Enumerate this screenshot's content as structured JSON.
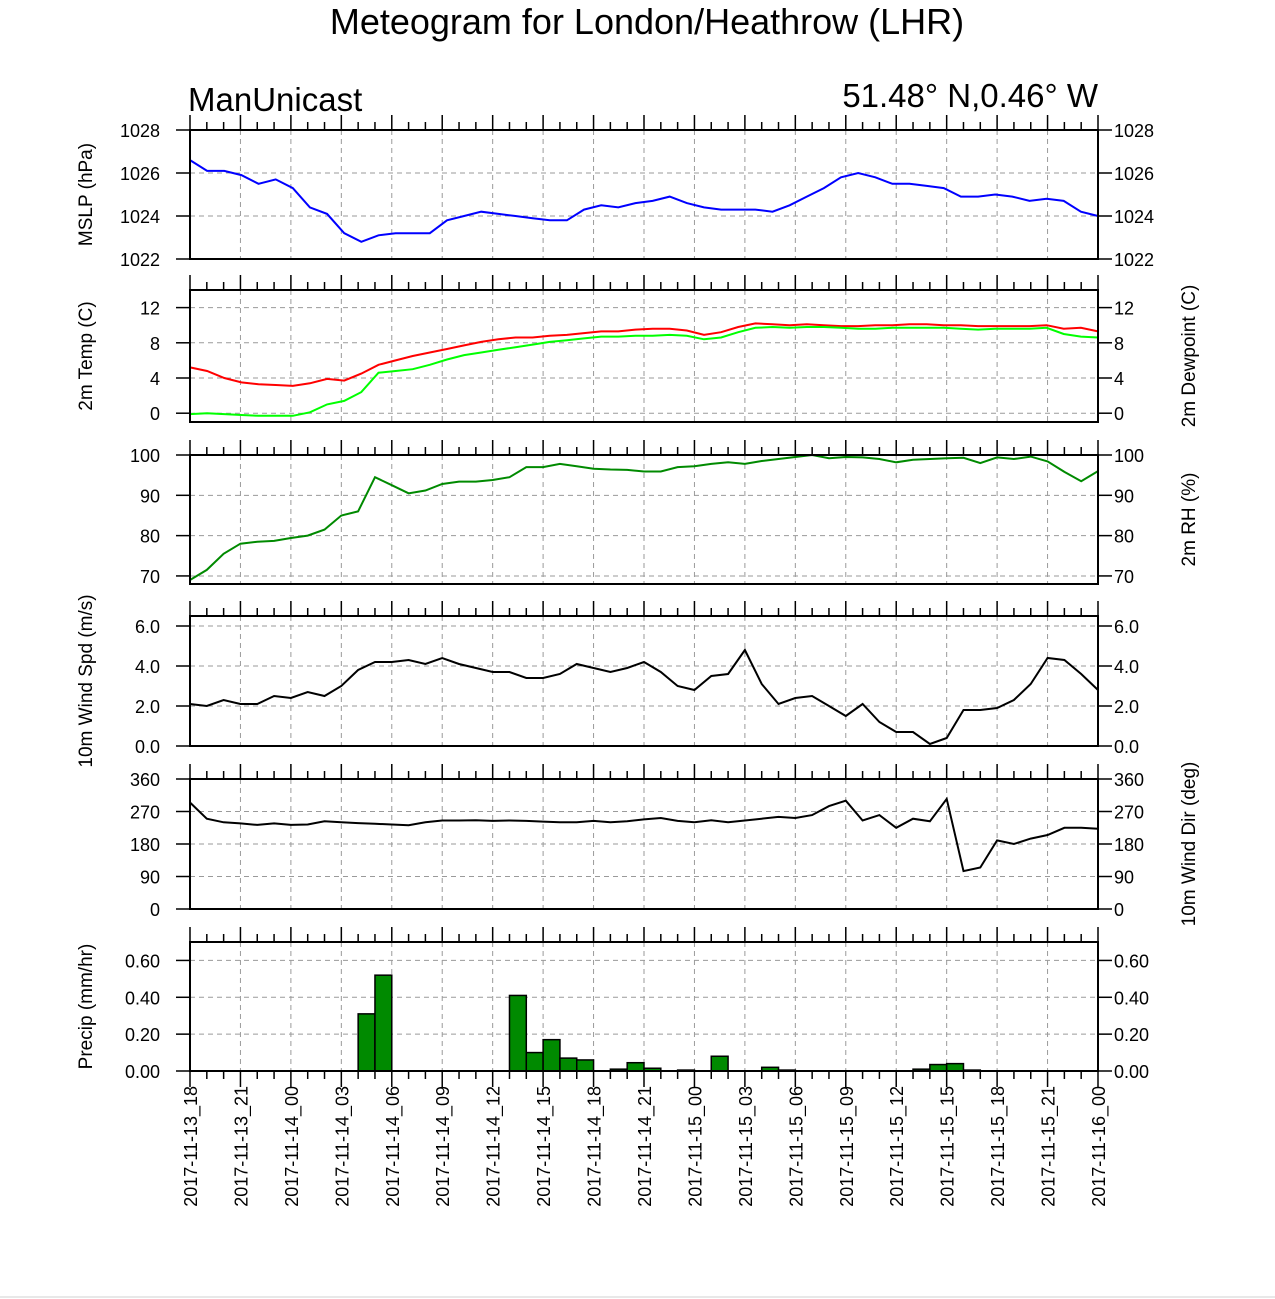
{
  "page": {
    "title": "Meteogram for London/Heathrow (LHR)",
    "model": "ManUnicast",
    "location": "51.48° N,0.46° W"
  },
  "time_axis": {
    "labels": [
      "2017-11-13_18",
      "2017-11-13_21",
      "2017-11-14_00",
      "2017-11-14_03",
      "2017-11-14_06",
      "2017-11-14_09",
      "2017-11-14_12",
      "2017-11-14_15",
      "2017-11-14_18",
      "2017-11-14_21",
      "2017-11-15_00",
      "2017-11-15_03",
      "2017-11-15_06",
      "2017-11-15_09",
      "2017-11-15_12",
      "2017-11-15_15",
      "2017-11-15_18",
      "2017-11-15_21",
      "2017-11-16_00"
    ],
    "start_hour": 0,
    "end_hour": 54
  },
  "chart_data": [
    {
      "type": "line",
      "id": "mslp",
      "ylabel_left": "MSLP (hPa)",
      "ylabel_right": "",
      "ylim": [
        1022,
        1028
      ],
      "yticks": [
        1022,
        1024,
        1026,
        1028
      ],
      "right_ticks": true,
      "grid": true,
      "series": [
        {
          "color": "#0000ff",
          "values": [
            1026.6,
            1026.1,
            1026.1,
            1025.9,
            1025.5,
            1025.7,
            1025.3,
            1024.4,
            1024.1,
            1023.2,
            1022.8,
            1023.1,
            1023.2,
            1023.2,
            1023.2,
            1023.8,
            1024.0,
            1024.2,
            1024.1,
            1024.0,
            1023.9,
            1023.8,
            1023.8,
            1024.3,
            1024.5,
            1024.4,
            1024.6,
            1024.7,
            1024.9,
            1024.6,
            1024.4,
            1024.3,
            1024.3,
            1024.3,
            1024.2,
            1024.5,
            1024.9,
            1025.3,
            1025.8,
            1026.0,
            1025.8,
            1025.5,
            1025.5,
            1025.4,
            1025.3,
            1024.9,
            1024.9,
            1025.0,
            1024.9,
            1024.7,
            1024.8,
            1024.7,
            1024.2,
            1024.0
          ]
        }
      ]
    },
    {
      "type": "line",
      "id": "temp",
      "ylabel_left": "2m Temp (C)",
      "ylabel_right": "2m Dewpoint (C)",
      "ylim": [
        -1,
        14
      ],
      "yticks": [
        0,
        4,
        8,
        12
      ],
      "right_ticks": true,
      "grid": true,
      "series": [
        {
          "color": "#ff0000",
          "values": [
            5.2,
            4.8,
            4.0,
            3.5,
            3.3,
            3.2,
            3.1,
            3.4,
            3.9,
            3.7,
            4.5,
            5.5,
            6.0,
            6.5,
            6.9,
            7.3,
            7.7,
            8.1,
            8.4,
            8.6,
            8.6,
            8.8,
            8.9,
            9.1,
            9.3,
            9.3,
            9.5,
            9.6,
            9.6,
            9.4,
            8.9,
            9.2,
            9.8,
            10.2,
            10.1,
            10.0,
            10.1,
            10.0,
            9.9,
            9.9,
            10.0,
            10.0,
            10.1,
            10.1,
            10.0,
            10.0,
            9.9,
            9.9,
            9.9,
            9.9,
            10.0,
            9.6,
            9.7,
            9.3
          ]
        },
        {
          "color": "#00ff00",
          "values": [
            -0.1,
            0.0,
            -0.1,
            -0.2,
            -0.3,
            -0.3,
            -0.3,
            0.1,
            1.0,
            1.4,
            2.4,
            4.6,
            4.8,
            5.0,
            5.5,
            6.1,
            6.6,
            6.9,
            7.2,
            7.5,
            7.8,
            8.1,
            8.3,
            8.5,
            8.7,
            8.7,
            8.8,
            8.8,
            8.9,
            8.8,
            8.4,
            8.6,
            9.2,
            9.7,
            9.8,
            9.7,
            9.8,
            9.8,
            9.7,
            9.6,
            9.6,
            9.7,
            9.7,
            9.7,
            9.7,
            9.6,
            9.5,
            9.6,
            9.6,
            9.6,
            9.7,
            9.0,
            8.7,
            8.6
          ]
        }
      ]
    },
    {
      "type": "line",
      "id": "rh",
      "ylabel_left": "",
      "ylabel_right": "2m RH (%)",
      "ylim": [
        68,
        100
      ],
      "yticks": [
        70,
        80,
        90,
        100
      ],
      "right_ticks": true,
      "grid": true,
      "series": [
        {
          "color": "#008a00",
          "values": [
            69,
            71.5,
            75.5,
            78,
            78.5,
            78.7,
            79.4,
            80,
            81.5,
            85,
            86,
            94.5,
            92.5,
            90.5,
            91.2,
            92.8,
            93.4,
            93.4,
            93.8,
            94.5,
            97,
            97,
            97.8,
            97.2,
            96.6,
            96.4,
            96.3,
            95.9,
            95.9,
            97,
            97.2,
            97.8,
            98.2,
            97.8,
            98.5,
            99,
            99.5,
            100,
            99.2,
            99.5,
            99.4,
            99,
            98.2,
            98.8,
            99,
            99.2,
            99.3,
            98,
            99.4,
            99,
            99.6,
            98.4,
            95.8,
            93.5,
            96
          ]
        }
      ]
    },
    {
      "type": "line",
      "id": "wspd",
      "ylabel_left": "10m Wind Spd (m/s)",
      "ylabel_right": "",
      "ylim": [
        0,
        6.5
      ],
      "yticks_labels": [
        "0.0",
        "2.0",
        "4.0",
        "6.0"
      ],
      "yticks": [
        0,
        2,
        4,
        6
      ],
      "right_ticks": true,
      "grid": true,
      "series": [
        {
          "color": "#000000",
          "values": [
            2.1,
            2.0,
            2.3,
            2.1,
            2.1,
            2.5,
            2.4,
            2.7,
            2.5,
            3.0,
            3.8,
            4.2,
            4.2,
            4.3,
            4.1,
            4.4,
            4.1,
            3.9,
            3.7,
            3.7,
            3.4,
            3.4,
            3.6,
            4.1,
            3.9,
            3.7,
            3.9,
            4.2,
            3.7,
            3.0,
            2.8,
            3.5,
            3.6,
            4.8,
            3.1,
            2.1,
            2.4,
            2.5,
            2.0,
            1.5,
            2.1,
            1.2,
            0.7,
            0.7,
            0.1,
            0.4,
            1.8,
            1.8,
            1.9,
            2.3,
            3.1,
            4.4,
            4.3,
            3.6,
            2.8
          ]
        }
      ]
    },
    {
      "type": "line",
      "id": "wdir",
      "ylabel_left": "",
      "ylabel_right": "10m Wind Dir (deg)",
      "ylim": [
        0,
        360
      ],
      "yticks": [
        0,
        90,
        180,
        270,
        360
      ],
      "right_ticks": true,
      "grid": true,
      "series": [
        {
          "color": "#000000",
          "values": [
            295,
            250,
            240,
            237,
            233,
            237,
            233,
            234,
            243,
            240,
            238,
            236,
            234,
            232,
            240,
            245,
            245,
            246,
            244,
            245,
            244,
            242,
            240,
            240,
            244,
            240,
            243,
            248,
            252,
            244,
            240,
            246,
            240,
            245,
            250,
            255,
            252,
            260,
            285,
            300,
            245,
            260,
            225,
            250,
            243,
            305,
            105,
            115,
            190,
            180,
            195,
            205,
            225,
            225,
            222
          ]
        }
      ]
    },
    {
      "type": "bar",
      "id": "precip",
      "ylabel_left": "Precip (mm/hr)",
      "ylabel_right": "",
      "ylim": [
        0,
        0.7
      ],
      "yticks_labels": [
        "0.00",
        "0.20",
        "0.40",
        "0.60"
      ],
      "yticks": [
        0,
        0.2,
        0.4,
        0.6
      ],
      "right_ticks": true,
      "grid": true,
      "bar_color": "#008a00",
      "bars": [
        {
          "hour": 10,
          "value": 0.31
        },
        {
          "hour": 11,
          "value": 0.52
        },
        {
          "hour": 19,
          "value": 0.41
        },
        {
          "hour": 20,
          "value": 0.1
        },
        {
          "hour": 21,
          "value": 0.17
        },
        {
          "hour": 22,
          "value": 0.07
        },
        {
          "hour": 23,
          "value": 0.06
        },
        {
          "hour": 25,
          "value": 0.01
        },
        {
          "hour": 26,
          "value": 0.045
        },
        {
          "hour": 27,
          "value": 0.015
        },
        {
          "hour": 29,
          "value": 0.005
        },
        {
          "hour": 31,
          "value": 0.08
        },
        {
          "hour": 34,
          "value": 0.02
        },
        {
          "hour": 35,
          "value": 0.005
        },
        {
          "hour": 43,
          "value": 0.01
        },
        {
          "hour": 44,
          "value": 0.035
        },
        {
          "hour": 45,
          "value": 0.04
        },
        {
          "hour": 46,
          "value": 0.005
        }
      ]
    }
  ]
}
